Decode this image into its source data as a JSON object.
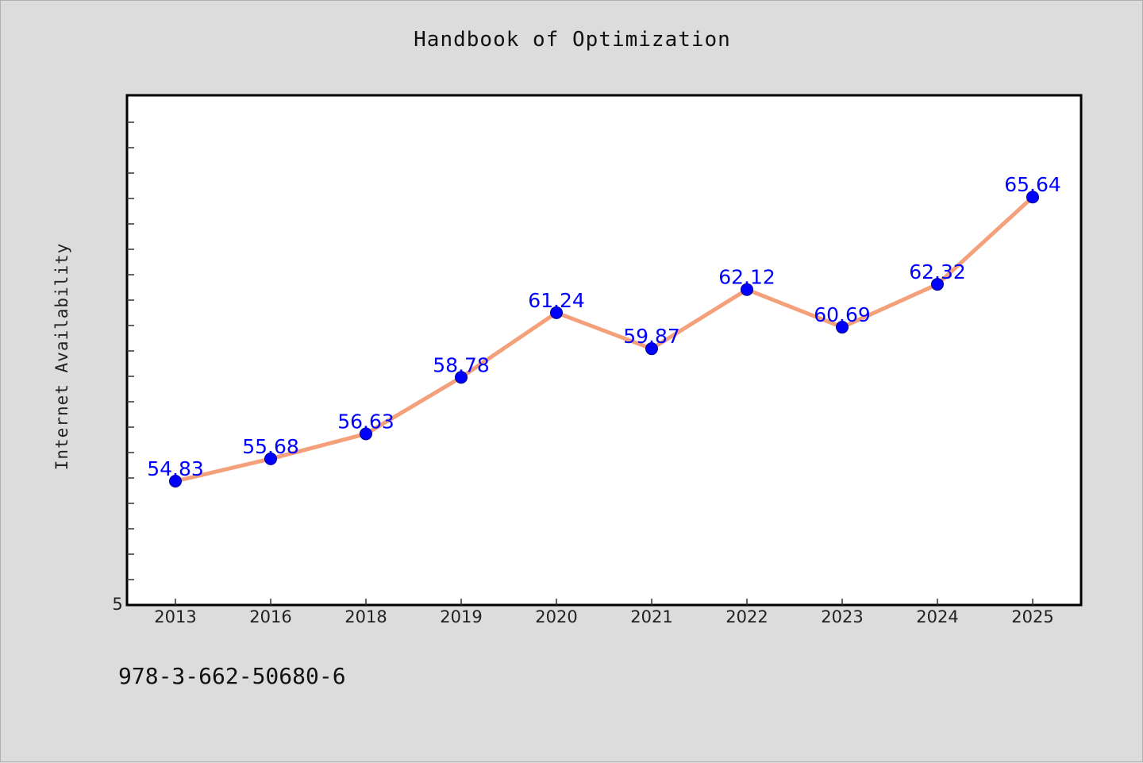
{
  "chart_data": {
    "type": "line",
    "title": "Handbook of Optimization",
    "xlabel": "",
    "ylabel": "Internet Availability",
    "categories": [
      "2013",
      "2016",
      "2018",
      "2019",
      "2020",
      "2021",
      "2022",
      "2023",
      "2024",
      "2025"
    ],
    "series": [
      {
        "values": [
          54.83,
          55.68,
          56.63,
          58.78,
          61.24,
          59.87,
          62.12,
          60.69,
          62.32,
          65.64
        ],
        "line_color": "#f4a07a",
        "marker_color": "#0000ff",
        "label_color": "#0000ff"
      }
    ],
    "y_tick_labels": [
      "5"
    ],
    "grid": false,
    "legend": "none"
  },
  "footer": {
    "isbn": "978-3-662-50680-6"
  }
}
